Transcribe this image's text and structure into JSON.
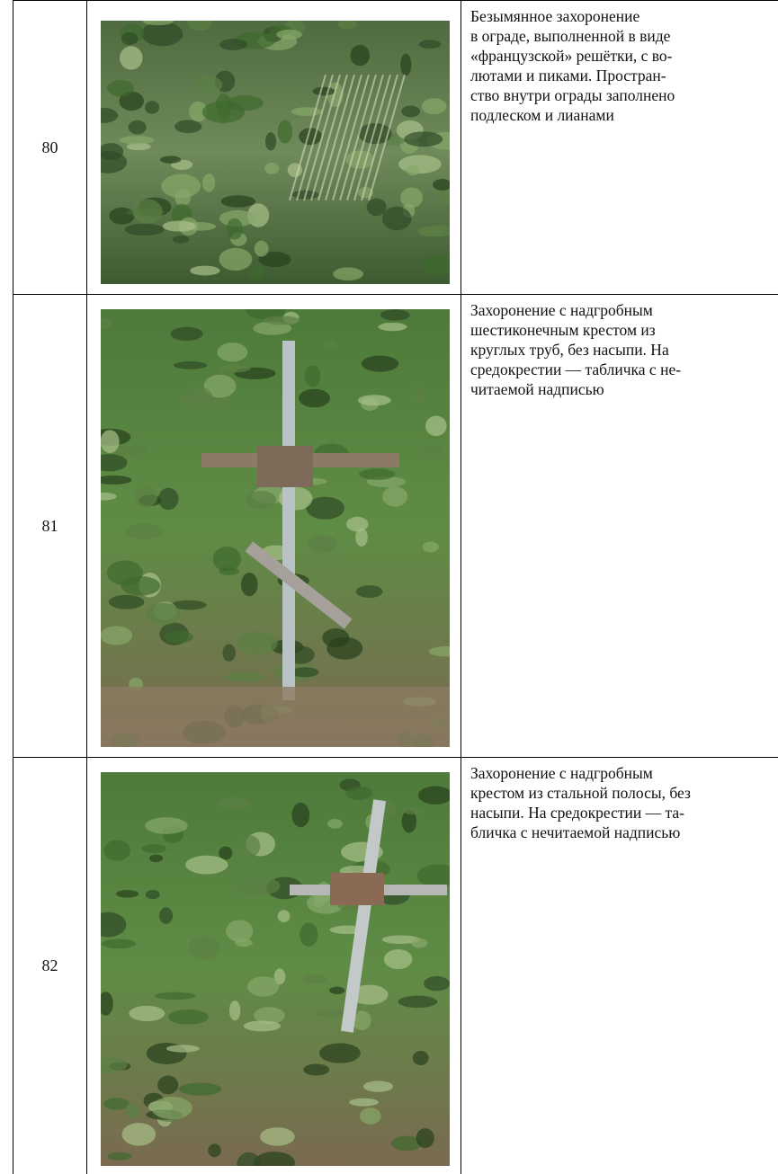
{
  "table": {
    "rows": [
      {
        "number": "80",
        "description": [
          "Безымянное захоронение",
          "в ограде, выполненной в виде",
          "«французской» решётки, с во-",
          "лютами и пиками. Простран-",
          "ство внутри ограды заполнено",
          "подлеском и лианами"
        ]
      },
      {
        "number": "81",
        "description": [
          "Захоронение с надгробным",
          "шестиконечным крестом из",
          "круглых труб, без насыпи. На",
          "средокрестии — табличка с не-",
          "читаемой надписью"
        ]
      },
      {
        "number": "82",
        "description": [
          "Захоронение с надгробным",
          "крестом из стальной полосы, без",
          "насыпи. На средокрестии — та-",
          "бличка с нечитаемой надписью"
        ]
      }
    ]
  }
}
